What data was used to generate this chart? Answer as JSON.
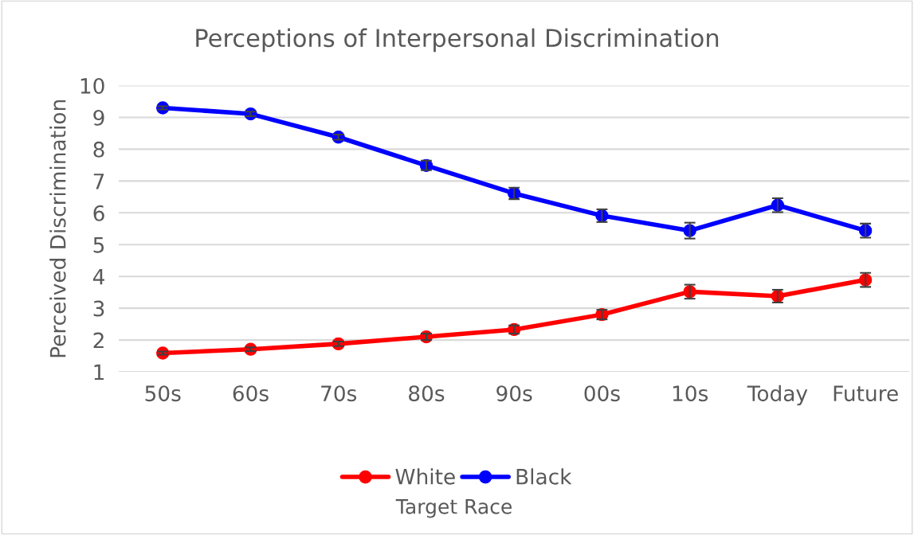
{
  "chart_data": {
    "type": "line",
    "title": "Perceptions of Interpersonal Discrimination",
    "ylabel": "Perceived Discrimination",
    "xlabel": "Target Race",
    "categories": [
      "50s",
      "60s",
      "70s",
      "80s",
      "90s",
      "00s",
      "10s",
      "Today",
      "Future"
    ],
    "series": [
      {
        "name": "White",
        "color": "#ff0000",
        "values": [
          1.59,
          1.71,
          1.88,
          2.1,
          2.33,
          2.8,
          3.52,
          3.38,
          3.89
        ],
        "errors": [
          0.05,
          0.06,
          0.07,
          0.1,
          0.13,
          0.15,
          0.22,
          0.2,
          0.22
        ]
      },
      {
        "name": "Black",
        "color": "#0000ff",
        "values": [
          9.3,
          9.11,
          8.38,
          7.49,
          6.61,
          5.91,
          5.44,
          6.24,
          5.44
        ],
        "errors": [
          0.05,
          0.07,
          0.08,
          0.15,
          0.18,
          0.2,
          0.25,
          0.22,
          0.22
        ]
      }
    ],
    "ylim": [
      1,
      10
    ],
    "yticks": [
      1,
      2,
      3,
      4,
      5,
      6,
      7,
      8,
      9,
      10
    ],
    "grid": "y",
    "legend": "bottom",
    "marker": "circle",
    "line_style": "solid"
  }
}
